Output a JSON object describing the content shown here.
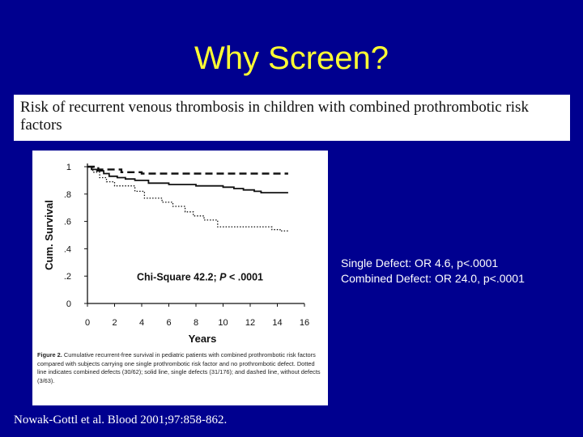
{
  "slide": {
    "title": "Why Screen?",
    "banner_text": "Risk of recurrent venous thrombosis in children with combined prothrombotic risk factors",
    "stats": [
      "Single Defect: OR 4.6, p<.0001",
      "Combined Defect: OR 24.0, p<.0001"
    ],
    "citation": "Nowak-Gottl et al. Blood 2001;97:858-862."
  },
  "figure": {
    "caption_label": "Figure 2.",
    "caption_text": "Cumulative recurrent-free survival in pediatric patients with combined prothrombotic risk factors compared with subjects carrying one single prothrombotic risk factor and no prothrombotic defect. Dotted line indicates combined defects (30/62); solid line, single defects (31/176); and dashed line, without defects (3/63)."
  },
  "chart_data": {
    "type": "line",
    "xlabel": "Years",
    "ylabel": "Cum. Survival",
    "xlim": [
      0,
      16
    ],
    "ylim": [
      0,
      1
    ],
    "x_ticks": [
      "0",
      "2",
      "4",
      "6",
      "8",
      "10",
      "12",
      "14",
      "16"
    ],
    "y_ticks": [
      "0",
      ".2",
      ".4",
      ".6",
      ".8",
      "1"
    ],
    "annotation": {
      "text_a": "Chi-Square 42.2; ",
      "text_b": "P",
      "text_c": " < .0001",
      "x": 8.3,
      "y": 0.17
    },
    "series": [
      {
        "style": "dashed",
        "x": [
          0,
          0.8,
          0.8,
          2.5,
          2.5,
          4.0,
          4.0,
          14.8
        ],
        "y": [
          1.0,
          1.0,
          0.98,
          0.98,
          0.96,
          0.96,
          0.95,
          0.95
        ]
      },
      {
        "style": "solid",
        "x": [
          0,
          0.3,
          0.3,
          0.7,
          0.7,
          1.2,
          1.2,
          1.6,
          1.6,
          2.2,
          2.2,
          2.8,
          2.8,
          3.5,
          3.5,
          4.5,
          4.5,
          6.0,
          6.0,
          8.0,
          8.0,
          10.0,
          10.0,
          10.8,
          10.8,
          11.5,
          11.5,
          12.3,
          12.3,
          12.8,
          12.8,
          14.8
        ],
        "y": [
          1.0,
          1.0,
          0.98,
          0.98,
          0.97,
          0.97,
          0.95,
          0.95,
          0.93,
          0.93,
          0.92,
          0.92,
          0.91,
          0.91,
          0.9,
          0.9,
          0.88,
          0.88,
          0.87,
          0.87,
          0.86,
          0.86,
          0.85,
          0.85,
          0.84,
          0.84,
          0.83,
          0.83,
          0.82,
          0.82,
          0.81,
          0.81
        ]
      },
      {
        "style": "dotted",
        "x": [
          0,
          0.4,
          0.4,
          0.9,
          0.9,
          1.4,
          1.4,
          2.0,
          2.0,
          3.5,
          3.5,
          4.2,
          4.2,
          5.5,
          5.5,
          6.3,
          6.3,
          7.2,
          7.2,
          7.8,
          7.8,
          8.6,
          8.6,
          9.6,
          9.6,
          12.4,
          12.4,
          13.6,
          13.6,
          14.2,
          14.2,
          14.8
        ],
        "y": [
          1.0,
          1.0,
          0.96,
          0.96,
          0.92,
          0.92,
          0.89,
          0.89,
          0.86,
          0.86,
          0.82,
          0.82,
          0.77,
          0.77,
          0.74,
          0.74,
          0.71,
          0.71,
          0.67,
          0.67,
          0.64,
          0.64,
          0.61,
          0.61,
          0.56,
          0.56,
          0.56,
          0.56,
          0.54,
          0.54,
          0.53,
          0.53
        ]
      }
    ]
  }
}
